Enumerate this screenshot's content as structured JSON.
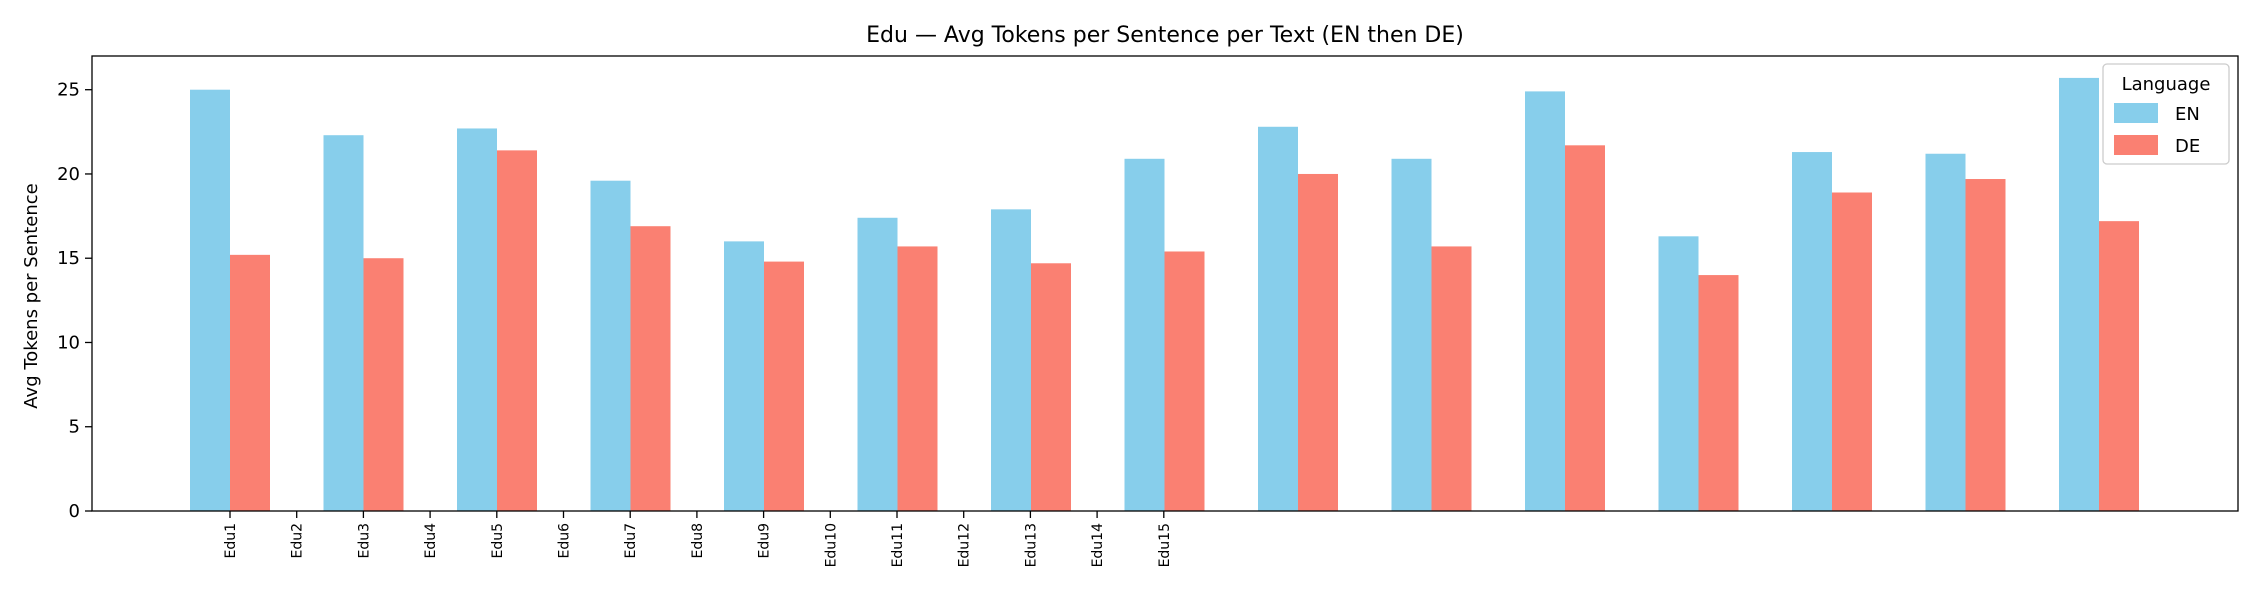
{
  "chart_data": {
    "type": "bar",
    "title": "Edu — Avg Tokens per Sentence per Text (EN then DE)",
    "xlabel": "",
    "ylabel": "Avg Tokens per Sentence",
    "ylim": [
      0,
      27
    ],
    "yticks": [
      0,
      5,
      10,
      15,
      20,
      25
    ],
    "grid": false,
    "legend": {
      "title": "Language",
      "placement": "top-right"
    },
    "tick_labels": [
      "Edu1",
      "Edu2",
      "Edu3",
      "Edu4",
      "Edu5",
      "Edu6",
      "Edu7",
      "Edu8",
      "Edu9",
      "Edu10",
      "Edu11",
      "Edu12",
      "Edu13",
      "Edu14",
      "Edu15"
    ],
    "groups": 15,
    "series": [
      {
        "name": "EN",
        "color": "#87CEEB",
        "values": [
          25.0,
          22.3,
          22.7,
          19.6,
          16.0,
          17.4,
          17.9,
          20.9,
          22.8,
          20.9,
          24.9,
          16.3,
          21.3,
          21.2,
          25.7
        ]
      },
      {
        "name": "DE",
        "color": "#FA8072",
        "values": [
          15.2,
          15.0,
          21.4,
          16.9,
          14.8,
          15.7,
          14.7,
          15.4,
          20.0,
          15.7,
          21.7,
          14.0,
          18.9,
          19.7,
          17.2
        ]
      }
    ]
  }
}
